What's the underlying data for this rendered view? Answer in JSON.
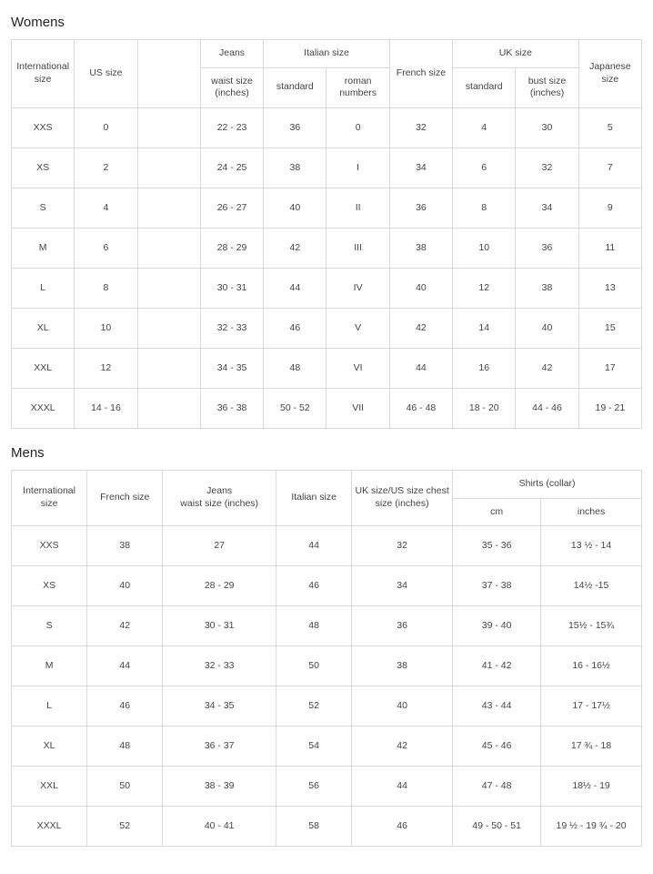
{
  "womens": {
    "title": "Womens",
    "headers": {
      "international": "International size",
      "us": "US size",
      "jeans": "Jeans",
      "jeans_sub": "waist size (inches)",
      "italian": "Italian size",
      "italian_std": "standard",
      "italian_roman": "roman numbers",
      "french": "French size",
      "uk": "UK size",
      "uk_std": "standard",
      "uk_bust": "bust size (inches)",
      "japanese": "Japanese size"
    },
    "rows": [
      {
        "intl": "XXS",
        "us": "0",
        "jeans": "22 - 23",
        "it_std": "36",
        "it_rom": "0",
        "fr": "32",
        "uk_std": "4",
        "uk_bust": "30",
        "jp": "5"
      },
      {
        "intl": "XS",
        "us": "2",
        "jeans": "24 - 25",
        "it_std": "38",
        "it_rom": "I",
        "fr": "34",
        "uk_std": "6",
        "uk_bust": "32",
        "jp": "7"
      },
      {
        "intl": "S",
        "us": "4",
        "jeans": "26 - 27",
        "it_std": "40",
        "it_rom": "II",
        "fr": "36",
        "uk_std": "8",
        "uk_bust": "34",
        "jp": "9"
      },
      {
        "intl": "M",
        "us": "6",
        "jeans": "28 - 29",
        "it_std": "42",
        "it_rom": "III",
        "fr": "38",
        "uk_std": "10",
        "uk_bust": "36",
        "jp": "11"
      },
      {
        "intl": "L",
        "us": "8",
        "jeans": "30 - 31",
        "it_std": "44",
        "it_rom": "IV",
        "fr": "40",
        "uk_std": "12",
        "uk_bust": "38",
        "jp": "13"
      },
      {
        "intl": "XL",
        "us": "10",
        "jeans": "32 - 33",
        "it_std": "46",
        "it_rom": "V",
        "fr": "42",
        "uk_std": "14",
        "uk_bust": "40",
        "jp": "15"
      },
      {
        "intl": "XXL",
        "us": "12",
        "jeans": "34 - 35",
        "it_std": "48",
        "it_rom": "VI",
        "fr": "44",
        "uk_std": "16",
        "uk_bust": "42",
        "jp": "17"
      },
      {
        "intl": "XXXL",
        "us": "14 - 16",
        "jeans": "36 - 38",
        "it_std": "50 - 52",
        "it_rom": "VII",
        "fr": "46 - 48",
        "uk_std": "18 - 20",
        "uk_bust": "44 - 46",
        "jp": "19 - 21"
      }
    ]
  },
  "mens": {
    "title": "Mens",
    "headers": {
      "international": "International size",
      "french": "French size",
      "jeans": "Jeans\nwaist size (inches)",
      "italian": "Italian size",
      "uk_us_chest": "UK size/US size chest size (inches)",
      "shirts": "Shirts (collar)",
      "shirts_cm": "cm",
      "shirts_in": "inches"
    },
    "rows": [
      {
        "intl": "XXS",
        "fr": "38",
        "jeans": "27",
        "it": "44",
        "chest": "32",
        "cm": "35 - 36",
        "in": "13 ½  - 14"
      },
      {
        "intl": "XS",
        "fr": "40",
        "jeans": "28 - 29",
        "it": "46",
        "chest": "34",
        "cm": "37 - 38",
        "in": "14½ -15"
      },
      {
        "intl": "S",
        "fr": "42",
        "jeans": "30 - 31",
        "it": "48",
        "chest": "36",
        "cm": "39 - 40",
        "in": "15½ - 15¾"
      },
      {
        "intl": "M",
        "fr": "44",
        "jeans": "32 - 33",
        "it": "50",
        "chest": "38",
        "cm": "41 - 42",
        "in": "16 - 16½"
      },
      {
        "intl": "L",
        "fr": "46",
        "jeans": "34 - 35",
        "it": "52",
        "chest": "40",
        "cm": "43 - 44",
        "in": "17 - 17½"
      },
      {
        "intl": "XL",
        "fr": "48",
        "jeans": "36 - 37",
        "it": "54",
        "chest": "42",
        "cm": "45 - 46",
        "in": "17 ¾ - 18"
      },
      {
        "intl": "XXL",
        "fr": "50",
        "jeans": "38 - 39",
        "it": "56",
        "chest": "44",
        "cm": "47 - 48",
        "in": "18½ - 19"
      },
      {
        "intl": "XXXL",
        "fr": "52",
        "jeans": "40 - 41",
        "it": "58",
        "chest": "46",
        "cm": "49 - 50 - 51",
        "in": "19 ½ - 19 ¾ - 20"
      }
    ]
  },
  "style": {
    "border_color": "#d9d9d9",
    "text_color": "#444",
    "background": "#ffffff",
    "font_size_cell": 10.5,
    "font_size_heading": 15
  }
}
